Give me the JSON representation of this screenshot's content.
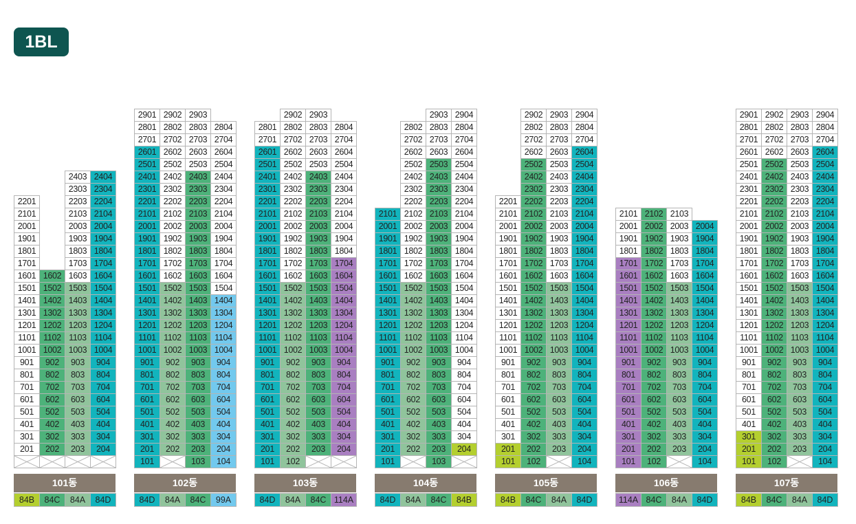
{
  "block_badge": "1BL",
  "type_colors": {
    "84B": "#b4cf2f",
    "84C": "#4db27a",
    "84A": "#90c49c",
    "84D": "#12b4bd",
    "99A": "#72c9ee",
    "114A": "#a97fc1"
  },
  "unavailable_color": "#ffffff",
  "note": "",
  "buildings": [
    {
      "label": "101동",
      "columns": [
        {
          "type": "84B",
          "top": 22,
          "blocked": [
            1
          ],
          "colored": null
        },
        {
          "type": "84C",
          "top": 16,
          "blocked": [
            1
          ],
          "colored": [
            2,
            16
          ]
        },
        {
          "type": "84A",
          "top": 24,
          "blocked": [
            1
          ],
          "colored": [
            2,
            15
          ]
        },
        {
          "type": "84D",
          "top": 24,
          "blocked": [
            1
          ],
          "colored": [
            2,
            24
          ]
        }
      ]
    },
    {
      "label": "102동",
      "columns": [
        {
          "type": "84D",
          "top": 29,
          "blocked": [],
          "colored": [
            1,
            26
          ]
        },
        {
          "type": "84A",
          "top": 29,
          "blocked": [
            1
          ],
          "colored": [
            2,
            15
          ]
        },
        {
          "type": "84C",
          "top": 29,
          "blocked": [],
          "colored": [
            1,
            24
          ]
        },
        {
          "type": "99A",
          "top": 28,
          "blocked": [],
          "colored": [
            1,
            14
          ]
        }
      ]
    },
    {
      "label": "103동",
      "columns": [
        {
          "type": "84D",
          "top": 28,
          "blocked": [],
          "colored": [
            1,
            26
          ]
        },
        {
          "type": "84A",
          "top": 29,
          "blocked": [],
          "colored": [
            1,
            15
          ]
        },
        {
          "type": "84C",
          "top": 29,
          "blocked": [
            1
          ],
          "colored": [
            2,
            24
          ]
        },
        {
          "type": "114A",
          "top": 28,
          "blocked": [
            1
          ],
          "colored": [
            2,
            17
          ]
        }
      ]
    },
    {
      "label": "104동",
      "columns": [
        {
          "type": "84D",
          "top": 21,
          "blocked": [],
          "colored": [
            1,
            21
          ]
        },
        {
          "type": "84A",
          "top": 28,
          "blocked": [
            1
          ],
          "colored": [
            2,
            15
          ]
        },
        {
          "type": "84C",
          "top": 29,
          "blocked": [],
          "colored": [
            1,
            25
          ]
        },
        {
          "type": "84B",
          "top": 29,
          "blocked": [
            1
          ],
          "colored": [
            2,
            2
          ]
        }
      ]
    },
    {
      "label": "105동",
      "columns": [
        {
          "type": "84B",
          "top": 22,
          "blocked": [],
          "colored": [
            1,
            2
          ]
        },
        {
          "type": "84C",
          "top": 29,
          "blocked": [],
          "colored": [
            1,
            25
          ]
        },
        {
          "type": "84A",
          "top": 29,
          "blocked": [
            1
          ],
          "colored": [
            2,
            15
          ]
        },
        {
          "type": "84D",
          "top": 29,
          "blocked": [],
          "colored": [
            1,
            26
          ]
        }
      ]
    },
    {
      "label": "106동",
      "columns": [
        {
          "type": "114A",
          "top": 21,
          "blocked": [],
          "colored": [
            1,
            17
          ]
        },
        {
          "type": "84C",
          "top": 21,
          "blocked": [],
          "colored": [
            1,
            21
          ]
        },
        {
          "type": "84A",
          "top": 21,
          "blocked": [
            1
          ],
          "colored": [
            2,
            15
          ]
        },
        {
          "type": "84D",
          "top": 20,
          "blocked": [],
          "colored": [
            1,
            20
          ]
        }
      ]
    },
    {
      "label": "107동",
      "columns": [
        {
          "type": "84B",
          "top": 29,
          "blocked": [],
          "colored": [
            1,
            3
          ]
        },
        {
          "type": "84C",
          "top": 29,
          "blocked": [],
          "colored": [
            1,
            25
          ]
        },
        {
          "type": "84A",
          "top": 29,
          "blocked": [
            1
          ],
          "colored": [
            2,
            15
          ]
        },
        {
          "type": "84D",
          "top": 29,
          "blocked": [],
          "colored": [
            1,
            26
          ]
        }
      ]
    }
  ]
}
